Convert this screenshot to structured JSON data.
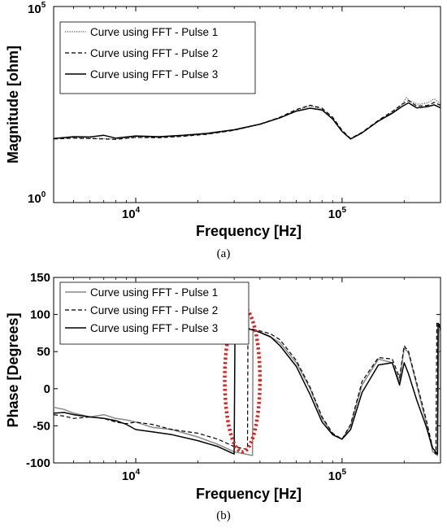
{
  "chart_data": [
    {
      "type": "line",
      "panel_label": "(a)",
      "xlabel": "Frequency [Hz]",
      "ylabel": "Magnitude [ohm]",
      "x_scale": "log",
      "y_scale": "log",
      "xlim": [
        4000,
        300000
      ],
      "ylim": [
        1,
        100000
      ],
      "x_ticks": [
        {
          "value": 10000,
          "base": "10",
          "exp": "4"
        },
        {
          "value": 100000,
          "base": "10",
          "exp": "5"
        }
      ],
      "y_ticks": [
        {
          "value": 1,
          "base": "10",
          "exp": "0"
        },
        {
          "value": 100000,
          "base": "10",
          "exp": "5"
        }
      ],
      "legend_position": "top-left",
      "series": [
        {
          "name": "Curve using FFT - Pulse 1",
          "style": "dotted",
          "color": "#555555",
          "x": [
            4000,
            5000,
            6000,
            8000,
            10000,
            13000,
            17000,
            22000,
            30000,
            40000,
            50000,
            60000,
            70000,
            80000,
            90000,
            100000,
            110000,
            125000,
            150000,
            175000,
            195000,
            205000,
            215000,
            235000,
            260000,
            280000,
            300000
          ],
          "y": [
            43,
            45,
            44,
            42,
            47,
            46,
            50,
            55,
            70,
            98,
            145,
            225,
            290,
            240,
            140,
            65,
            42,
            60,
            120,
            200,
            310,
            480,
            380,
            320,
            350,
            440,
            330
          ]
        },
        {
          "name": "Curve using FFT - Pulse 2",
          "style": "dashed",
          "color": "#000000",
          "x": [
            4000,
            5000,
            6000,
            8000,
            10000,
            13000,
            17000,
            22000,
            30000,
            40000,
            50000,
            60000,
            70000,
            80000,
            90000,
            100000,
            110000,
            125000,
            150000,
            175000,
            195000,
            210000,
            230000,
            260000,
            280000,
            300000
          ],
          "y": [
            42,
            44,
            43,
            41,
            46,
            45,
            49,
            55,
            70,
            100,
            150,
            235,
            305,
            255,
            150,
            70,
            43,
            62,
            125,
            210,
            320,
            400,
            290,
            300,
            360,
            300
          ]
        },
        {
          "name": "Curve using FFT - Pulse 3",
          "style": "solid",
          "color": "#000000",
          "x": [
            4000,
            5000,
            6000,
            7000,
            8000,
            10000,
            13000,
            17000,
            22000,
            30000,
            40000,
            50000,
            60000,
            70000,
            80000,
            90000,
            100000,
            110000,
            125000,
            150000,
            175000,
            195000,
            210000,
            230000,
            260000,
            280000,
            300000
          ],
          "y": [
            43,
            48,
            47,
            52,
            44,
            50,
            48,
            52,
            58,
            72,
            100,
            145,
            215,
            255,
            230,
            135,
            65,
            42,
            60,
            120,
            190,
            280,
            350,
            260,
            280,
            310,
            260
          ]
        }
      ]
    },
    {
      "type": "line",
      "panel_label": "(b)",
      "xlabel": "Frequency [Hz]",
      "ylabel": "Phase [Degrees]",
      "x_scale": "log",
      "y_scale": "linear",
      "xlim": [
        4000,
        300000
      ],
      "ylim": [
        -100,
        150
      ],
      "x_ticks": [
        {
          "value": 10000,
          "base": "10",
          "exp": "4"
        },
        {
          "value": 100000,
          "base": "10",
          "exp": "5"
        }
      ],
      "y_ticks": [
        -100,
        -50,
        0,
        50,
        100,
        150
      ],
      "legend_position": "top-left",
      "highlight": {
        "shape": "ellipse",
        "style": "dotted",
        "color": "#e3201b",
        "x_center": 33000,
        "y_center": 10,
        "x_from": 27000,
        "x_to": 40000,
        "y_from": -85,
        "y_to": 110
      },
      "series": [
        {
          "name": "Curve using FFT - Pulse 1",
          "style": "solid",
          "color": "#888888",
          "x": [
            4000,
            4500,
            5000,
            6000,
            7000,
            8000,
            9000,
            10000,
            12000,
            15000,
            20000,
            25000,
            30000,
            36800,
            37000,
            37300,
            40000,
            45000,
            50000,
            60000,
            70000,
            80000,
            90000,
            100000,
            110000,
            125000,
            150000,
            175000,
            190000,
            200000,
            210000,
            230000,
            255000,
            275000,
            290000,
            295000,
            300000
          ],
          "y": [
            -25,
            -28,
            -33,
            -38,
            -35,
            -40,
            -42,
            -45,
            -52,
            -55,
            -65,
            -75,
            -85,
            -90,
            80,
            79,
            76,
            70,
            62,
            35,
            0,
            -40,
            -62,
            -68,
            -50,
            5,
            40,
            35,
            10,
            55,
            48,
            5,
            -45,
            -85,
            -90,
            80,
            75
          ]
        },
        {
          "name": "Curve using FFT - Pulse 2",
          "style": "dashed",
          "color": "#000000",
          "x": [
            4000,
            4500,
            5000,
            6000,
            7000,
            8000,
            9000,
            10000,
            12000,
            15000,
            20000,
            25000,
            30000,
            34800,
            35000,
            35300,
            40000,
            45000,
            50000,
            60000,
            70000,
            80000,
            90000,
            100000,
            110000,
            125000,
            150000,
            175000,
            190000,
            200000,
            210000,
            230000,
            255000,
            275000,
            285000,
            288000,
            300000
          ],
          "y": [
            -35,
            -37,
            -40,
            -38,
            -40,
            -45,
            -47,
            -45,
            -48,
            -55,
            -60,
            -68,
            -78,
            -82,
            82,
            81,
            78,
            74,
            66,
            38,
            2,
            -38,
            -60,
            -68,
            -48,
            10,
            42,
            40,
            15,
            58,
            50,
            8,
            -40,
            -80,
            -88,
            90,
            85
          ]
        },
        {
          "name": "Curve using FFT - Pulse 3",
          "style": "solid",
          "color": "#000000",
          "x": [
            4000,
            4500,
            5000,
            6000,
            7000,
            8000,
            9000,
            10000,
            12000,
            15000,
            20000,
            25000,
            30000,
            30300,
            31000,
            34000,
            38000,
            40000,
            45000,
            50000,
            60000,
            70000,
            80000,
            90000,
            100000,
            110000,
            125000,
            150000,
            175000,
            190000,
            200000,
            210000,
            230000,
            255000,
            275000,
            290000,
            292000,
            300000
          ],
          "y": [
            -33,
            -32,
            -35,
            -38,
            -40,
            -43,
            -48,
            -55,
            -58,
            -62,
            -70,
            -78,
            -88,
            90,
            88,
            82,
            78,
            76,
            70,
            58,
            30,
            -8,
            -45,
            -62,
            -68,
            -55,
            -5,
            32,
            35,
            5,
            35,
            20,
            -15,
            -50,
            -80,
            -88,
            88,
            80
          ]
        }
      ]
    }
  ]
}
